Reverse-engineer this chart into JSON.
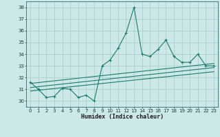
{
  "xlabel": "Humidex (Indice chaleur)",
  "ylabel": "",
  "background_color": "#cce8e8",
  "grid_color": "#aacfcf",
  "line_color": "#1a7a6a",
  "xlim": [
    -0.5,
    23.5
  ],
  "ylim": [
    29.5,
    38.5
  ],
  "yticks": [
    30,
    31,
    32,
    33,
    34,
    35,
    36,
    37,
    38
  ],
  "xticks": [
    0,
    1,
    2,
    3,
    4,
    5,
    6,
    7,
    8,
    9,
    10,
    11,
    12,
    13,
    14,
    15,
    16,
    17,
    18,
    19,
    20,
    21,
    22,
    23
  ],
  "main_series": {
    "x": [
      0,
      1,
      2,
      3,
      4,
      5,
      6,
      7,
      8,
      9,
      10,
      11,
      12,
      13,
      14,
      15,
      16,
      17,
      18,
      19,
      20,
      21,
      22,
      23
    ],
    "y": [
      31.6,
      31.0,
      30.3,
      30.4,
      31.1,
      31.0,
      30.3,
      30.5,
      30.0,
      33.0,
      33.5,
      34.5,
      35.8,
      38.0,
      34.0,
      33.8,
      34.4,
      35.2,
      33.8,
      33.3,
      33.3,
      34.0,
      33.0,
      33.0
    ]
  },
  "trend_lines": [
    {
      "x": [
        0,
        23
      ],
      "y": [
        31.5,
        33.2
      ]
    },
    {
      "x": [
        0,
        23
      ],
      "y": [
        31.15,
        32.85
      ]
    },
    {
      "x": [
        0,
        23
      ],
      "y": [
        30.85,
        32.5
      ]
    }
  ],
  "xlabel_fontsize": 6,
  "tick_fontsize": 5,
  "marker_size": 3
}
